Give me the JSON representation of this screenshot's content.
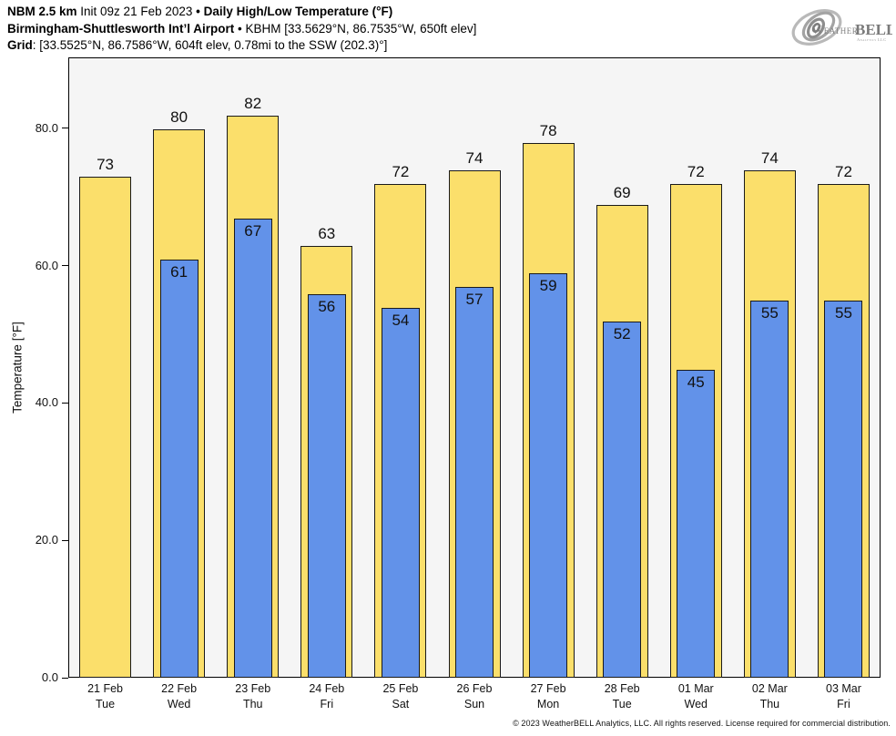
{
  "header": {
    "l1_model": "NBM 2.5 km",
    "l1_init": " Init 09z 21 Feb 2023 ",
    "l1_bullet": "•",
    "l1_product": " Daily High/Low Temperature (°F)",
    "l2_station": "Birmingham-Shuttlesworth Int’l Airport",
    "l2_bullet": " • ",
    "l2_info": "KBHM [33.5629°N, 86.7535°W, 650ft elev]",
    "l3_label": "Grid",
    "l3_value": ": [33.5525°N, 86.7586°W, 604ft elev, 0.78mi to the SSW (202.3)°]"
  },
  "logo": {
    "weather": "Weather",
    "bell": "BELL",
    "sub": "Analytics LLC"
  },
  "chart_data": {
    "type": "bar",
    "title": "Daily High/Low Temperature (°F)",
    "xlabel": "",
    "ylabel": "Temperature [°F]",
    "ylim": [
      0,
      90.3
    ],
    "yticks": [
      0,
      20,
      40,
      60,
      80
    ],
    "ytick_labels": [
      "0.0",
      "20.0",
      "40.0",
      "60.0",
      "80.0"
    ],
    "grid": false,
    "legend": "none",
    "plot_bg": "#f5f5f5",
    "bar_edge_color": "#1a1a1a",
    "categories": [
      {
        "date": "21 Feb",
        "day": "Tue"
      },
      {
        "date": "22 Feb",
        "day": "Wed"
      },
      {
        "date": "23 Feb",
        "day": "Thu"
      },
      {
        "date": "24 Feb",
        "day": "Fri"
      },
      {
        "date": "25 Feb",
        "day": "Sat"
      },
      {
        "date": "26 Feb",
        "day": "Sun"
      },
      {
        "date": "27 Feb",
        "day": "Mon"
      },
      {
        "date": "28 Feb",
        "day": "Tue"
      },
      {
        "date": "01 Mar",
        "day": "Wed"
      },
      {
        "date": "02 Mar",
        "day": "Thu"
      },
      {
        "date": "03 Mar",
        "day": "Fri"
      }
    ],
    "series": [
      {
        "name": "Daily High",
        "color": "#fbdf6b",
        "values": [
          73,
          80,
          82,
          63,
          72,
          74,
          78,
          69,
          72,
          74,
          72
        ]
      },
      {
        "name": "Daily Low",
        "color": "#6292e9",
        "values": [
          null,
          61,
          67,
          56,
          54,
          57,
          59,
          52,
          45,
          55,
          55
        ]
      }
    ]
  },
  "footer": {
    "copyright": "© 2023 WeatherBELL Analytics, LLC. All rights reserved. License required for commercial distribution."
  }
}
